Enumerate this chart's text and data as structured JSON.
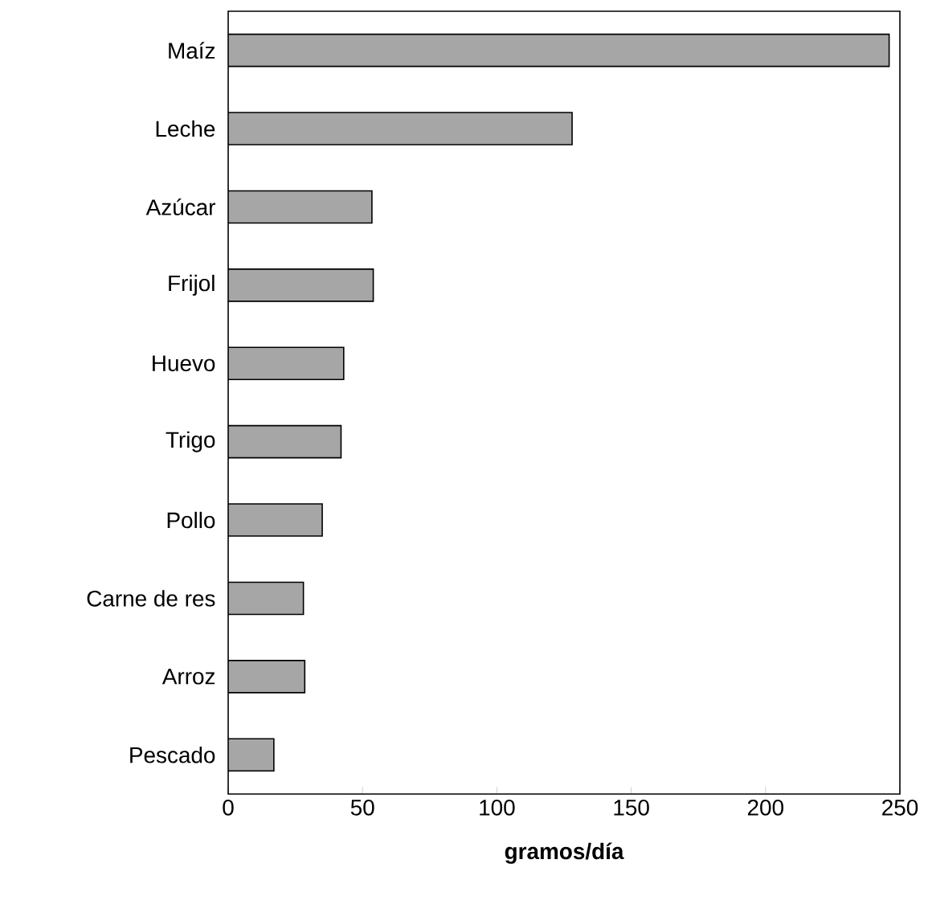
{
  "chart_data": {
    "type": "bar",
    "orientation": "horizontal",
    "xlabel": "gramos/día",
    "categories": [
      "Maíz",
      "Leche",
      "Azúcar",
      "Frijol",
      "Huevo",
      "Trigo",
      "Pollo",
      "Carne de res",
      "Arroz",
      "Pescado"
    ],
    "values": [
      246,
      128,
      53.5,
      54,
      43,
      42,
      35,
      28,
      28.5,
      17
    ],
    "color": "#a6a6a6",
    "xlim": [
      0,
      250
    ],
    "xticks": [
      0,
      50,
      100,
      150,
      200,
      250
    ],
    "grid": false
  }
}
